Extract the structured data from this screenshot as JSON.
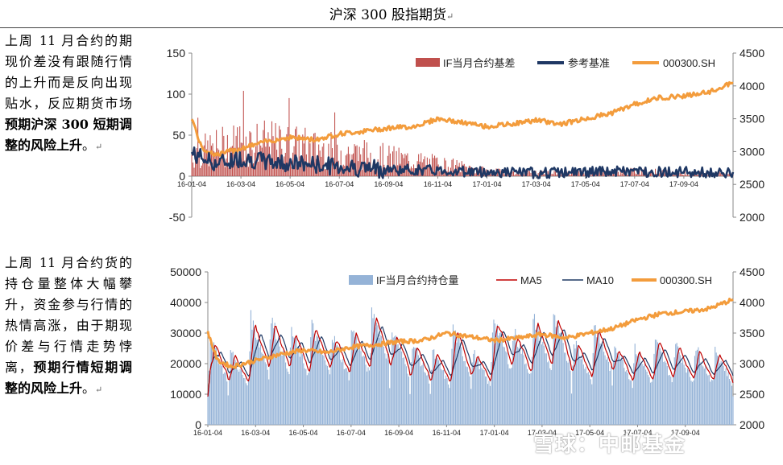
{
  "header": {
    "title": "沪深 300 股指期货",
    "mark": "↵"
  },
  "notes": [
    {
      "plain": "上周 11 月合约的期现价差没有跟随行情的上升而是反向出现贴水，反应期货市场",
      "bold": "预期沪深 300 短期调整的风险上升",
      "tail": "。",
      "mark": "↵"
    },
    {
      "plain": "上周 11 月合约货的持仓量整体大幅攀升，资金参与行情的热情高涨，由于期现价差与行情走势悖离，",
      "bold": "预期行情短期调整的风险上升",
      "tail": "。",
      "mark": "↵"
    }
  ],
  "watermark": "雪球：中邮基金",
  "chart_data": [
    {
      "type": "bar",
      "x_ticks": [
        "16-01-04",
        "16-03-04",
        "16-05-04",
        "16-07-04",
        "16-09-04",
        "16-11-04",
        "17-01-04",
        "17-03-04",
        "17-05-04",
        "17-07-04",
        "17-09-04"
      ],
      "x_range": [
        "2016-01-04",
        "2017-10-31"
      ],
      "y_left": {
        "min": -50,
        "max": 150,
        "ticks": [
          -50,
          0,
          50,
          100,
          150
        ]
      },
      "y_right": {
        "min": 2000,
        "max": 4500,
        "ticks": [
          2000,
          2500,
          3000,
          3500,
          4000,
          4500
        ]
      },
      "legend_position": "top-right",
      "series": [
        {
          "name": "IF当月合约基差",
          "kind": "bar",
          "axis": "left",
          "color": "#C0504D",
          "keypoints": [
            [
              0,
              35
            ],
            [
              2,
              55
            ],
            [
              4,
              50
            ],
            [
              6,
              40
            ],
            [
              8,
              30
            ],
            [
              9,
              25
            ],
            [
              11,
              15
            ],
            [
              12,
              8
            ],
            [
              14,
              5
            ],
            [
              16,
              6
            ],
            [
              18,
              8
            ],
            [
              20,
              6
            ],
            [
              22,
              4
            ]
          ]
        },
        {
          "name": "参考基准",
          "kind": "line",
          "axis": "left",
          "color": "#1F3864",
          "keypoints": [
            [
              0,
              28
            ],
            [
              1,
              15
            ],
            [
              2,
              22
            ],
            [
              3,
              18
            ],
            [
              4,
              16
            ],
            [
              5,
              14
            ],
            [
              6,
              12
            ],
            [
              7,
              10
            ],
            [
              8,
              8
            ],
            [
              10,
              7
            ],
            [
              12,
              5
            ],
            [
              14,
              4
            ],
            [
              16,
              5
            ],
            [
              18,
              6
            ],
            [
              20,
              5
            ],
            [
              22,
              3
            ]
          ]
        },
        {
          "name": "000300.SH",
          "kind": "line",
          "axis": "right",
          "color": "#F39C3C",
          "keypoints": [
            [
              0,
              3520
            ],
            [
              0.4,
              3050
            ],
            [
              1,
              2950
            ],
            [
              2,
              3050
            ],
            [
              3,
              3150
            ],
            [
              4,
              3220
            ],
            [
              5,
              3180
            ],
            [
              6,
              3270
            ],
            [
              7,
              3310
            ],
            [
              8,
              3360
            ],
            [
              9,
              3380
            ],
            [
              10,
              3500
            ],
            [
              11,
              3440
            ],
            [
              12,
              3380
            ],
            [
              13,
              3420
            ],
            [
              14,
              3480
            ],
            [
              15,
              3420
            ],
            [
              16,
              3500
            ],
            [
              17,
              3580
            ],
            [
              18,
              3720
            ],
            [
              19,
              3820
            ],
            [
              20,
              3850
            ],
            [
              21,
              3900
            ],
            [
              22,
              4050
            ]
          ]
        }
      ]
    },
    {
      "type": "bar",
      "x_ticks": [
        "16-01-04",
        "16-03-04",
        "16-05-04",
        "16-07-04",
        "16-09-04",
        "16-11-04",
        "17-01-04",
        "17-03-04",
        "17-05-04",
        "17-07-04",
        "17-09-04"
      ],
      "x_range": [
        "2016-01-04",
        "2017-10-31"
      ],
      "y_left": {
        "min": 0,
        "max": 50000,
        "ticks": [
          0,
          10000,
          20000,
          30000,
          40000,
          50000
        ]
      },
      "y_right": {
        "min": 2000,
        "max": 4500,
        "ticks": [
          2000,
          2500,
          3000,
          3500,
          4000,
          4500
        ]
      },
      "legend_position": "top-right",
      "series": [
        {
          "name": "IF当月合约持仓量",
          "kind": "bar",
          "axis": "left",
          "color": "#95B3D7",
          "cycle_peaks": [
            28000,
            24000,
            35000,
            35000,
            31000,
            33000,
            30000,
            32000,
            38000,
            31000,
            27000,
            24000,
            32000,
            24000,
            36000,
            31000,
            35000,
            35000,
            28000,
            33000,
            27000,
            26000,
            28000,
            27000,
            26000,
            25000
          ]
        },
        {
          "name": "MA5",
          "kind": "line",
          "axis": "left",
          "color": "#C00000"
        },
        {
          "name": "MA10",
          "kind": "line",
          "axis": "left",
          "color": "#1F3864"
        },
        {
          "name": "000300.SH",
          "kind": "line",
          "axis": "right",
          "color": "#F39C3C",
          "keypoints": [
            [
              0,
              3520
            ],
            [
              0.4,
              3050
            ],
            [
              1,
              2950
            ],
            [
              2,
              3050
            ],
            [
              3,
              3150
            ],
            [
              4,
              3220
            ],
            [
              5,
              3180
            ],
            [
              6,
              3270
            ],
            [
              7,
              3310
            ],
            [
              8,
              3360
            ],
            [
              9,
              3380
            ],
            [
              10,
              3500
            ],
            [
              11,
              3440
            ],
            [
              12,
              3380
            ],
            [
              13,
              3420
            ],
            [
              14,
              3480
            ],
            [
              15,
              3420
            ],
            [
              16,
              3500
            ],
            [
              17,
              3580
            ],
            [
              18,
              3720
            ],
            [
              19,
              3820
            ],
            [
              20,
              3850
            ],
            [
              21,
              3900
            ],
            [
              22,
              4050
            ]
          ]
        }
      ]
    }
  ]
}
